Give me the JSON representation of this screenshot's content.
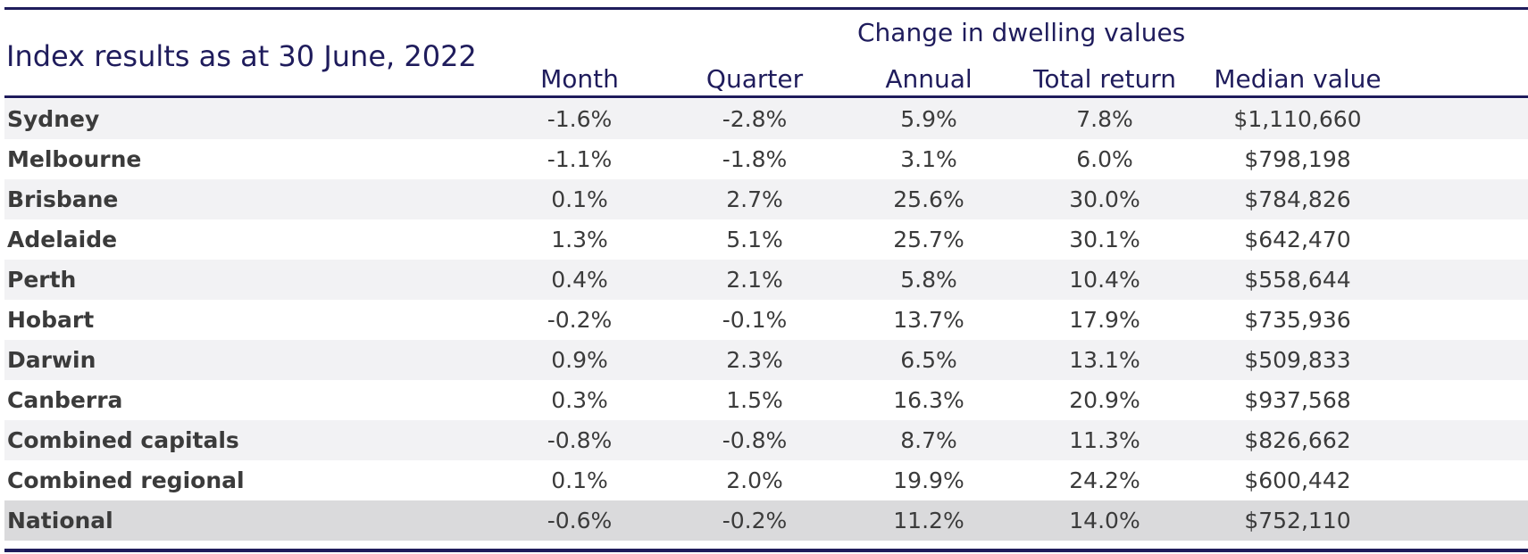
{
  "chart_data": {
    "type": "table",
    "title": "Index results as at 30 June, 2022",
    "group_header": "Change in dwelling values",
    "columns": [
      "Month",
      "Quarter",
      "Annual",
      "Total return",
      "Median value"
    ],
    "rows": [
      {
        "name": "Sydney",
        "values": [
          "-1.6%",
          "-2.8%",
          "5.9%",
          "7.8%",
          "$1,110,660"
        ]
      },
      {
        "name": "Melbourne",
        "values": [
          "-1.1%",
          "-1.8%",
          "3.1%",
          "6.0%",
          "$798,198"
        ]
      },
      {
        "name": "Brisbane",
        "values": [
          "0.1%",
          "2.7%",
          "25.6%",
          "30.0%",
          "$784,826"
        ]
      },
      {
        "name": "Adelaide",
        "values": [
          "1.3%",
          "5.1%",
          "25.7%",
          "30.1%",
          "$642,470"
        ]
      },
      {
        "name": "Perth",
        "values": [
          "0.4%",
          "2.1%",
          "5.8%",
          "10.4%",
          "$558,644"
        ]
      },
      {
        "name": "Hobart",
        "values": [
          "-0.2%",
          "-0.1%",
          "13.7%",
          "17.9%",
          "$735,936"
        ]
      },
      {
        "name": "Darwin",
        "values": [
          "0.9%",
          "2.3%",
          "6.5%",
          "13.1%",
          "$509,833"
        ]
      },
      {
        "name": "Canberra",
        "values": [
          "0.3%",
          "1.5%",
          "16.3%",
          "20.9%",
          "$937,568"
        ]
      },
      {
        "name": "Combined capitals",
        "values": [
          "-0.8%",
          "-0.8%",
          "8.7%",
          "11.3%",
          "$826,662"
        ]
      },
      {
        "name": "Combined regional",
        "values": [
          "0.1%",
          "2.0%",
          "19.9%",
          "24.2%",
          "$600,442"
        ]
      },
      {
        "name": "National",
        "values": [
          "-0.6%",
          "-0.2%",
          "11.2%",
          "14.0%",
          "$752,110"
        ]
      }
    ]
  },
  "colors": {
    "header_text": "#1f1c5c",
    "body_text": "#3b3b3b",
    "stripe": "#f2f2f4",
    "total_row": "#dadadc"
  }
}
